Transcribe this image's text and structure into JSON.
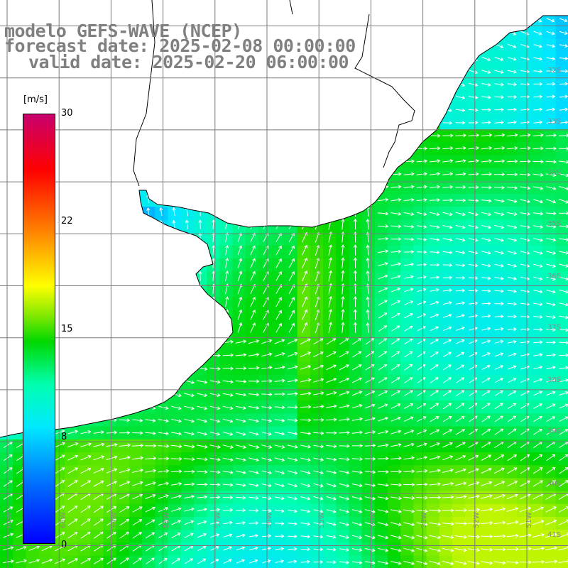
{
  "title": {
    "model": "modelo GEFS-WAVE (NCEP)",
    "forecast": "forecast date: 2025-02-08 00:00:00",
    "valid": "valid date: 2025-02-20 06:00:00"
  },
  "colorbar": {
    "unit": "[m/s]",
    "ticks": [
      "30",
      "22",
      "15",
      "8",
      "0"
    ],
    "range": [
      0,
      30
    ],
    "colors": [
      "#0000ff",
      "#00c8ff",
      "#00ffe0",
      "#00e000",
      "#ffff00",
      "#ff8000",
      "#ff0000",
      "#c8006e"
    ]
  },
  "map": {
    "land_color": "#ffffff",
    "grid_color": "#7a7a7a",
    "lat_labels": [
      "32S",
      "33S",
      "34S",
      "35S",
      "36S",
      "37S",
      "38S",
      "39S",
      "40S",
      "41S"
    ],
    "lon_labels": [
      "61W",
      "60W",
      "59W",
      "58W",
      "57W",
      "56W",
      "55W",
      "54W",
      "53W",
      "52W",
      "51W"
    ]
  }
}
